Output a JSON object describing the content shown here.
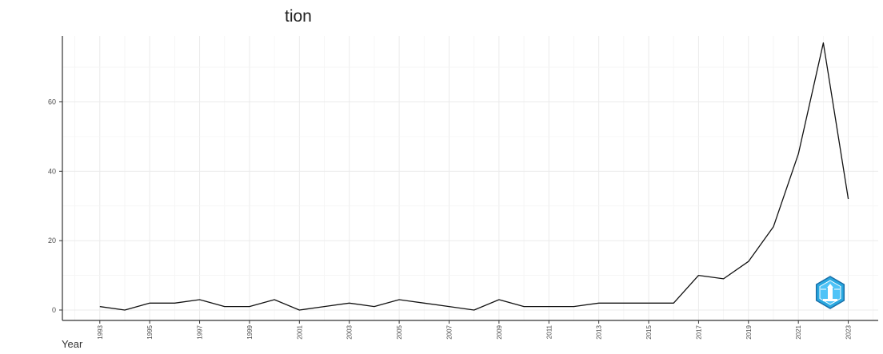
{
  "chart_data": {
    "type": "line",
    "title": "tion",
    "xlabel": "Year",
    "ylabel": "",
    "xlim": [
      1991.5,
      2024.2
    ],
    "ylim": [
      -3,
      79
    ],
    "grid": true,
    "x_tick_labels": [
      "1993",
      "1995",
      "1997",
      "1999",
      "2001",
      "2003",
      "2005",
      "2007",
      "2009",
      "2011",
      "2013",
      "2015",
      "2017",
      "2019",
      "2021",
      "2023"
    ],
    "y_tick_labels": [
      "0",
      "20",
      "40",
      "60"
    ],
    "series": [
      {
        "x": [
          1993,
          1994,
          1995,
          1996,
          1997,
          1998,
          1999,
          2000,
          2001,
          2002,
          2003,
          2004,
          2005,
          2006,
          2007,
          2008,
          2009,
          2010,
          2011,
          2012,
          2013,
          2014,
          2015,
          2016,
          2017,
          2018,
          2019,
          2020,
          2021,
          2022,
          2023
        ],
        "values": [
          1,
          0,
          2,
          2,
          3,
          1,
          1,
          3,
          0,
          1,
          2,
          1,
          3,
          2,
          1,
          0,
          3,
          1,
          1,
          1,
          2,
          2,
          2,
          2,
          10,
          9,
          14,
          24,
          45,
          77,
          32
        ]
      }
    ],
    "colors": {
      "line": "#111111",
      "grid": "#ebebeb",
      "axis": "#333333"
    }
  },
  "logo": {
    "icon": "lighthouse-hexagon-icon",
    "color": "#29a8e0"
  }
}
